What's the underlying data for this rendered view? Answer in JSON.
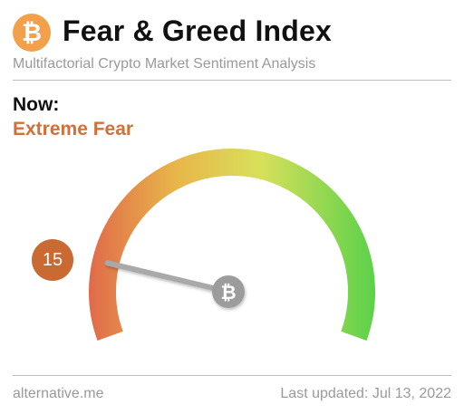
{
  "header": {
    "logo_glyph": "₿",
    "title": "Fear & Greed Index",
    "subtitle": "Multifactorial Crypto Market Sentiment Analysis"
  },
  "current": {
    "label": "Now:",
    "classification": "Extreme Fear",
    "value": 15,
    "value_text": "15",
    "scale_min": 0,
    "scale_max": 100,
    "classification_color": "#d0703b"
  },
  "gauge": {
    "color_stops": [
      "#e06a4a",
      "#e8b54a",
      "#d9e05a",
      "#5cd14a"
    ],
    "needle_hub_glyph": "₿"
  },
  "footer": {
    "source": "alternative.me",
    "last_updated": "Last updated: Jul 13, 2022"
  }
}
